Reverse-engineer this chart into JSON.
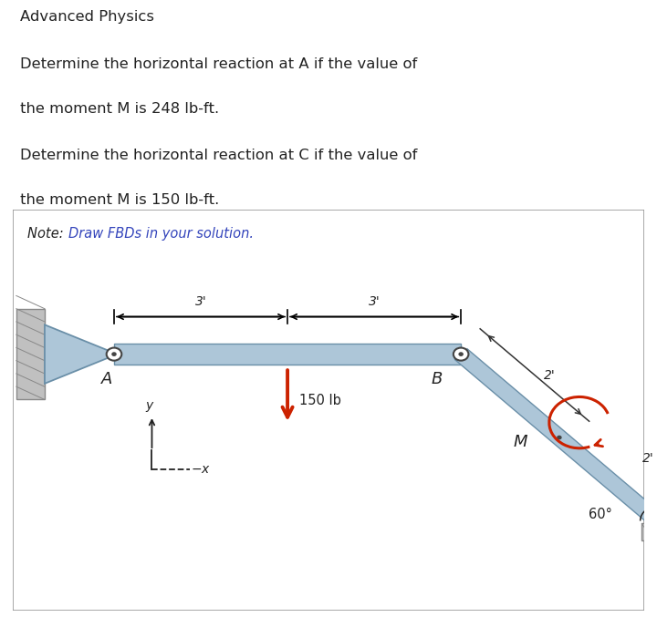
{
  "title_lines": [
    "Advanced Physics",
    "Determine the horizontal reaction at A if the value of",
    "the moment M is 248 lb-ft.",
    "Determine the horizontal reaction at C if the value of",
    "the moment M is 150 lb-ft."
  ],
  "note_plain": "Note: ",
  "note_colored": "Draw FBDs in your solution.",
  "diagram_bg": "#e8e8e8",
  "beam_color": "#adc6d8",
  "beam_edge_color": "#6a8fa8",
  "wall_color": "#c0c0c0",
  "wall_hatch_color": "#888888",
  "pin_color": "#444444",
  "arrow_red": "#cc2200",
  "text_color": "#222222",
  "note_blue": "#3344bb",
  "dim_color": "#333333"
}
